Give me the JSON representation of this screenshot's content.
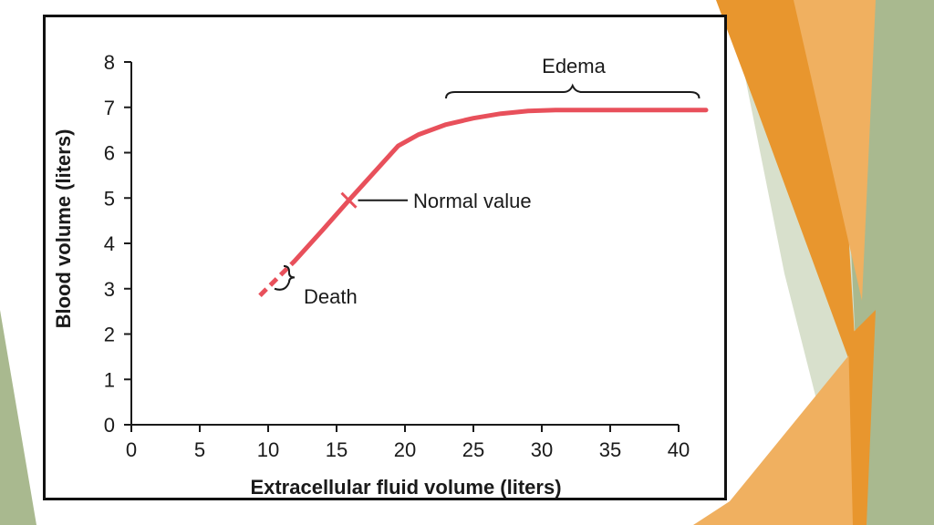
{
  "colors": {
    "series": "#e8505b",
    "axis": "#1a1a1a",
    "frame": "#111111",
    "accent_orange": "#e8962e",
    "accent_light_orange": "#f0b060",
    "accent_green": "#a9b98f",
    "accent_light_green": "#d8e0cc"
  },
  "chart_data": {
    "type": "line",
    "title": "",
    "xlabel": "Extracellular fluid volume (liters)",
    "ylabel": "Blood volume (liters)",
    "xlim": [
      0,
      40
    ],
    "ylim": [
      0,
      8
    ],
    "x_ticks": [
      "0",
      "5",
      "10",
      "15",
      "20",
      "25",
      "30",
      "35",
      "40"
    ],
    "y_ticks": [
      "0",
      "1",
      "2",
      "3",
      "4",
      "5",
      "6",
      "7",
      "8"
    ],
    "grid": false,
    "legend": "none",
    "series": [
      {
        "x": [
          11.9,
          14,
          15.9,
          18,
          19.5,
          21,
          23,
          25,
          27,
          29,
          31,
          33,
          36,
          39,
          42
        ],
        "y": [
          3.6,
          4.3,
          4.95,
          5.65,
          6.15,
          6.4,
          6.62,
          6.76,
          6.86,
          6.92,
          6.94,
          6.94,
          6.94,
          6.94,
          6.94
        ]
      }
    ],
    "dashed_segment": {
      "x": [
        9.4,
        11.9
      ],
      "y": [
        2.85,
        3.6
      ]
    },
    "normal_point": {
      "x": 15.9,
      "y": 4.95
    },
    "annotations": {
      "edema": "Edema",
      "normal_value": "Normal value",
      "death": "Death"
    },
    "edema_range": [
      23,
      41.5
    ],
    "death_range": [
      3.0,
      3.5
    ]
  }
}
